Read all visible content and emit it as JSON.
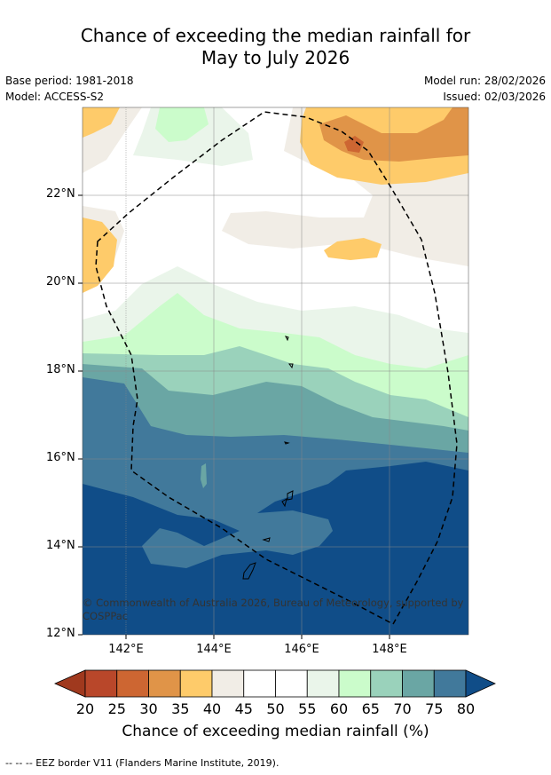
{
  "title_line1": "Chance of exceeding the median rainfall for",
  "title_line2": "May to July 2026",
  "base_period": "Base period: 1981-2018",
  "model": "Model: ACCESS-S2",
  "model_run": "Model run: 28/02/2026",
  "issued": "Issued: 02/03/2026",
  "lat_labels": [
    "22°N",
    "20°N",
    "18°N",
    "16°N",
    "14°N",
    "12°N"
  ],
  "lon_labels": [
    "142°E",
    "144°E",
    "146°E",
    "148°E"
  ],
  "colorbar": {
    "ticks": [
      "20",
      "25",
      "30",
      "35",
      "40",
      "45",
      "50",
      "55",
      "60",
      "65",
      "70",
      "75",
      "80"
    ],
    "colors": [
      "#a0391e",
      "#b9472a",
      "#cd6632",
      "#e09448",
      "#fecb6a",
      "#f1ede6",
      "#ffffff",
      "#ffffff",
      "#eaf5ea",
      "#cbfccb",
      "#9ad2bb",
      "#6aa6a4",
      "#41799b",
      "#104d88"
    ],
    "label": "Chance of exceeding median rainfall (%)"
  },
  "credit": "© Commonwealth of Australia 2026, Bureau of Meteorology, supported by COSPPac",
  "footnote": "--  --  -- EEZ border V11 (Flanders Marine Institute, 2019)."
}
